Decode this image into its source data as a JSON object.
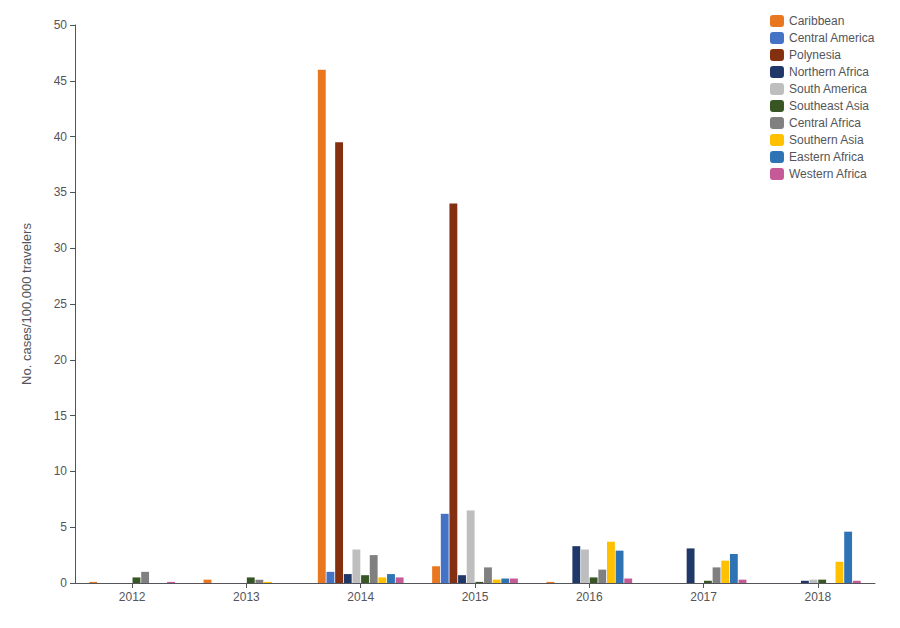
{
  "chart_data": {
    "type": "bar",
    "categories": [
      "2012",
      "2013",
      "2014",
      "2015",
      "2016",
      "2017",
      "2018"
    ],
    "series": [
      {
        "name": "Caribbean",
        "color": "#E8771F",
        "values": [
          0.1,
          0.3,
          46.0,
          1.5,
          0.1,
          0.0,
          0.0
        ]
      },
      {
        "name": "Central America",
        "color": "#4472C4",
        "values": [
          0.0,
          0.0,
          1.0,
          6.2,
          0.0,
          0.0,
          0.0
        ]
      },
      {
        "name": "Polynesia",
        "color": "#843010",
        "values": [
          0.0,
          0.0,
          39.5,
          34.0,
          0.0,
          0.0,
          0.0
        ]
      },
      {
        "name": "Northern Africa",
        "color": "#1F3868",
        "values": [
          0.0,
          0.0,
          0.8,
          0.7,
          3.3,
          3.1,
          0.2
        ]
      },
      {
        "name": "South America",
        "color": "#BEBEBE",
        "values": [
          0.0,
          0.0,
          3.0,
          6.5,
          3.0,
          0.0,
          0.3
        ]
      },
      {
        "name": "Southeast Asia",
        "color": "#375623",
        "values": [
          0.5,
          0.5,
          0.7,
          0.1,
          0.5,
          0.2,
          0.3
        ]
      },
      {
        "name": "Central Africa",
        "color": "#808080",
        "values": [
          1.0,
          0.3,
          2.5,
          1.4,
          1.2,
          1.4,
          0.0
        ]
      },
      {
        "name": "Southern Asia",
        "color": "#FFC000",
        "values": [
          0.0,
          0.1,
          0.5,
          0.3,
          3.7,
          2.0,
          1.9
        ]
      },
      {
        "name": "Eastern Africa",
        "color": "#2E74B5",
        "values": [
          0.0,
          0.0,
          0.8,
          0.4,
          2.9,
          2.6,
          4.6
        ]
      },
      {
        "name": "Western Africa",
        "color": "#C55A96",
        "values": [
          0.1,
          0.0,
          0.5,
          0.4,
          0.4,
          0.3,
          0.2
        ]
      }
    ],
    "ylabel": "No. cases/100,000 travelers",
    "ylim": [
      0,
      50
    ],
    "yticks": [
      0,
      5,
      10,
      15,
      20,
      25,
      30,
      35,
      40,
      45,
      50
    ],
    "grid": false,
    "legend": "upper right"
  }
}
